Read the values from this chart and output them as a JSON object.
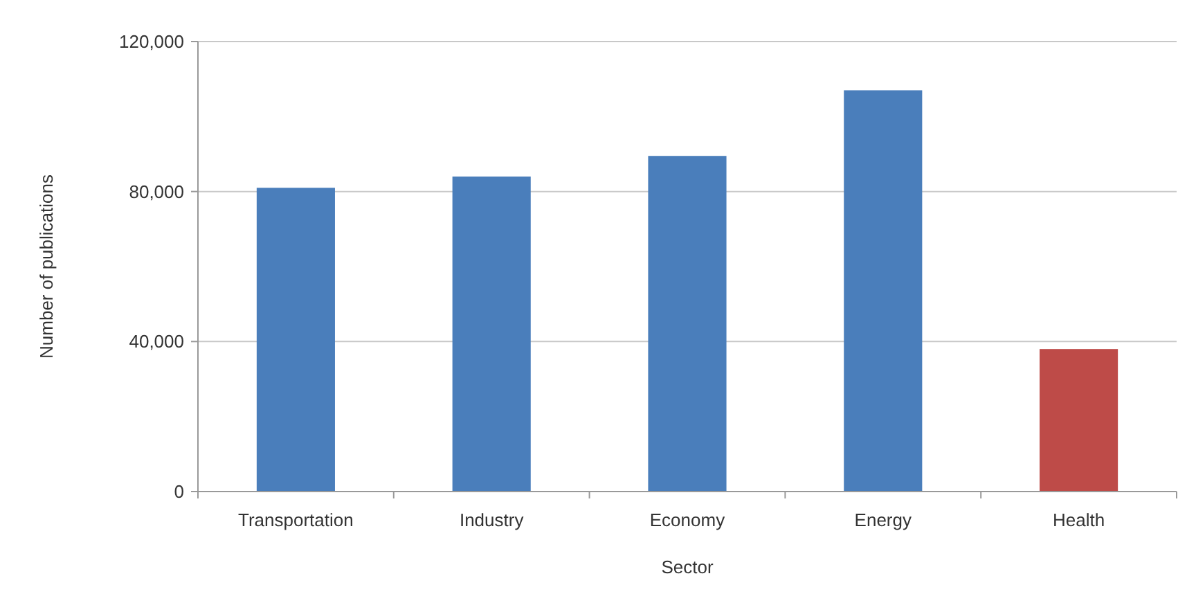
{
  "chart_data": {
    "type": "bar",
    "xlabel": "Sector",
    "ylabel": "Number of publications",
    "categories": [
      "Transportation",
      "Industry",
      "Economy",
      "Energy",
      "Health"
    ],
    "values": [
      81000,
      84000,
      89500,
      107000,
      38000
    ],
    "colors": [
      "#4a7ebb",
      "#4a7ebb",
      "#4a7ebb",
      "#4a7ebb",
      "#be4b48"
    ],
    "ylim": [
      0,
      120000
    ],
    "yticks": [
      {
        "value": 0,
        "label": "0"
      },
      {
        "value": 40000,
        "label": "40,000"
      },
      {
        "value": 80000,
        "label": "80,000"
      },
      {
        "value": 120000,
        "label": "120,000"
      }
    ],
    "grid": "y"
  }
}
